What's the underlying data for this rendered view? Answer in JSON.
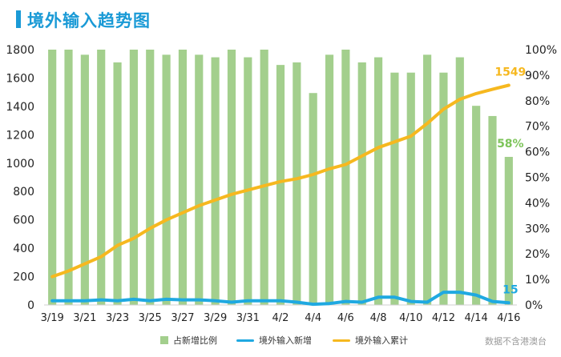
{
  "header": {
    "title": "境外输入趋势图"
  },
  "footer": {
    "source_note": "数据不含港澳台"
  },
  "colors": {
    "accent": "#1a9ad6",
    "bar": "#a3cf8d",
    "cumulative_line": "#f6b81f",
    "daily_line": "#1fa9e1",
    "bar_label": "#7dc45a"
  },
  "chart_data": {
    "type": "bar",
    "title": "境外输入趋势图",
    "dates": [
      "3/19",
      "3/20",
      "3/21",
      "3/22",
      "3/23",
      "3/24",
      "3/25",
      "3/26",
      "3/27",
      "3/28",
      "3/29",
      "3/30",
      "3/31",
      "4/1",
      "4/2",
      "4/3",
      "4/4",
      "4/5",
      "4/6",
      "4/7",
      "4/8",
      "4/9",
      "4/10",
      "4/11",
      "4/12",
      "4/13",
      "4/14",
      "4/15",
      "4/16"
    ],
    "x_tick_labels": [
      "3/19",
      "3/21",
      "3/23",
      "3/25",
      "3/27",
      "3/29",
      "3/31",
      "4/2",
      "4/4",
      "4/6",
      "4/8",
      "4/10",
      "4/12",
      "4/14",
      "4/16"
    ],
    "left_axis": {
      "min": 0,
      "max": 1800,
      "ticks": [
        "0",
        "200",
        "400",
        "600",
        "800",
        "1000",
        "1200",
        "1400",
        "1600",
        "1800"
      ]
    },
    "right_axis": {
      "min": 0,
      "max": 100,
      "ticks": [
        "0%",
        "10%",
        "20%",
        "30%",
        "40%",
        "50%",
        "60%",
        "70%",
        "80%",
        "90%",
        "100%"
      ]
    },
    "series": [
      {
        "name": "占新增比例",
        "kind": "bar",
        "axis": "right",
        "values": [
          100,
          100,
          98,
          100,
          95,
          100,
          100,
          98,
          100,
          98,
          97,
          100,
          97,
          100,
          94,
          95,
          83,
          98,
          100,
          95,
          97,
          91,
          91,
          98,
          91,
          97,
          78,
          74,
          58
        ]
      },
      {
        "name": "境外输入新增",
        "kind": "line",
        "axis": "left",
        "values": [
          30,
          30,
          30,
          36,
          30,
          40,
          30,
          40,
          36,
          36,
          30,
          20,
          30,
          30,
          30,
          20,
          5,
          10,
          25,
          20,
          55,
          55,
          25,
          20,
          90,
          90,
          70,
          25,
          15
        ]
      },
      {
        "name": "境外输入累计",
        "kind": "line",
        "axis": "left",
        "values": [
          200,
          240,
          290,
          340,
          420,
          470,
          540,
          600,
          650,
          700,
          740,
          780,
          810,
          840,
          870,
          890,
          920,
          960,
          990,
          1050,
          1110,
          1150,
          1190,
          1280,
          1380,
          1450,
          1490,
          1520,
          1549
        ]
      }
    ],
    "annotations": [
      {
        "series": "境外输入累计",
        "text": "1549"
      },
      {
        "series": "占新增比例",
        "text": "58%"
      },
      {
        "series": "境外输入新增",
        "text": "15"
      }
    ],
    "legend": [
      "占新增比例",
      "境外输入新增",
      "境外输入累计"
    ],
    "legend_position": "bottom",
    "grid": false
  }
}
